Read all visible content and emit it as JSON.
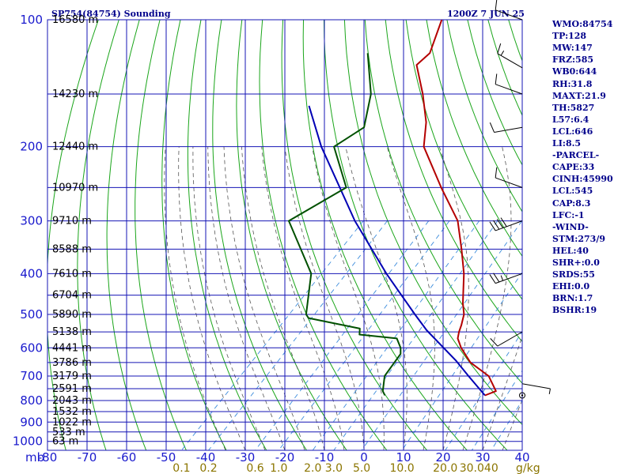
{
  "header": {
    "title_left": "SP754(84754) Sounding",
    "title_right": "1200Z  7 JUN 25"
  },
  "stats": [
    "WMO:84754",
    "TP:128",
    "MW:147",
    "FRZ:585",
    "WB0:644",
    "RH:31.8",
    "MAXT:21.9",
    "TH:5827",
    "L57:6.4",
    "LCL:646",
    "LI:8.5",
    "-PARCEL-",
    "CAPE:33",
    "CINH:45990",
    "LCL:545",
    "CAP:8.3",
    "LFC:-1",
    "-WIND-",
    "STM:273/9",
    "HEL:40",
    "SHR+:0.0",
    "SRDS:55",
    "EHI:0.0",
    "BRN:1.7",
    "BSHR:19"
  ],
  "colors": {
    "grid": "#1414b4",
    "dry_adiabat": "#1aa51a",
    "moist_adiabat": "#555555",
    "mixing_ratio": "#3c8cdc",
    "temperature": "#b40000",
    "dewpoint": "#005000",
    "parcel": "#0000b4"
  },
  "chart_data": {
    "type": "skew-t",
    "pressure_axis_label": "mb",
    "mixing_ratio_unit": "g/kg",
    "pressure_levels": [
      100,
      200,
      300,
      400,
      500,
      600,
      700,
      800,
      900,
      1000
    ],
    "pressure_minor_levels": [
      150,
      250,
      350,
      450,
      550,
      650,
      750,
      850,
      950
    ],
    "pressure_range": [
      100,
      1050
    ],
    "temperature_ticks": [
      -80,
      -70,
      -60,
      -50,
      -40,
      -30,
      -20,
      -10,
      0,
      10,
      20,
      30,
      40
    ],
    "temperature_labels": [
      "-80",
      "-70",
      "-60",
      "-50",
      "-40",
      "-30",
      "-20",
      "-10",
      "0",
      "10",
      "20",
      "30",
      "40"
    ],
    "mixing_ratio_labels": [
      {
        "text": "0.1",
        "value": 0.1
      },
      {
        "text": "0.2",
        "value": 0.2
      },
      {
        "text": "0.6",
        "value": 0.6
      },
      {
        "text": "1.0",
        "value": 1.0
      },
      {
        "text": "2.0",
        "value": 2.0
      },
      {
        "text": "3.0",
        "value": 3.0
      },
      {
        "text": "5.0",
        "value": 5.0
      },
      {
        "text": "10.0",
        "value": 10.0
      },
      {
        "text": "20.0",
        "value": 20.0
      },
      {
        "text": "30.0",
        "value": 30.0
      },
      {
        "text": "40",
        "value": 40
      }
    ],
    "height_labels": [
      {
        "p": 100,
        "text": "16580 m"
      },
      {
        "p": 150,
        "text": "14230 m"
      },
      {
        "p": 200,
        "text": "12440 m"
      },
      {
        "p": 250,
        "text": "10970 m"
      },
      {
        "p": 300,
        "text": "9710 m"
      },
      {
        "p": 350,
        "text": "8588 m"
      },
      {
        "p": 400,
        "text": "7610 m"
      },
      {
        "p": 450,
        "text": "6704 m"
      },
      {
        "p": 500,
        "text": "5890 m"
      },
      {
        "p": 550,
        "text": "5138 m"
      },
      {
        "p": 600,
        "text": "4441 m"
      },
      {
        "p": 650,
        "text": "3786 m"
      },
      {
        "p": 700,
        "text": "3179 m"
      },
      {
        "p": 750,
        "text": "2591 m"
      },
      {
        "p": 800,
        "text": "2043 m"
      },
      {
        "p": 850,
        "text": "1532 m"
      },
      {
        "p": 900,
        "text": "1022 m"
      },
      {
        "p": 950,
        "text": "533 m"
      },
      {
        "p": 1000,
        "text": "63 m"
      }
    ],
    "temperature_profile": [
      {
        "p": 778,
        "t": 21.9
      },
      {
        "p": 760,
        "t": 23.6
      },
      {
        "p": 700,
        "t": 18.0
      },
      {
        "p": 650,
        "t": 10.0
      },
      {
        "p": 600,
        "t": 4.0
      },
      {
        "p": 570,
        "t": 0.8
      },
      {
        "p": 550,
        "t": -0.5
      },
      {
        "p": 530,
        "t": -1.6
      },
      {
        "p": 500,
        "t": -3.6
      },
      {
        "p": 470,
        "t": -6.7
      },
      {
        "p": 400,
        "t": -13.8
      },
      {
        "p": 350,
        "t": -20.5
      },
      {
        "p": 300,
        "t": -28.5
      },
      {
        "p": 250,
        "t": -41.0
      },
      {
        "p": 200,
        "t": -55.6
      },
      {
        "p": 175,
        "t": -61.1
      },
      {
        "p": 150,
        "t": -69.0
      },
      {
        "p": 128,
        "t": -77.8
      },
      {
        "p": 120,
        "t": -77.4
      },
      {
        "p": 100,
        "t": -82.7
      }
    ],
    "dewpoint_profile": [
      {
        "p": 778,
        "t": -3.4
      },
      {
        "p": 760,
        "t": -5.0
      },
      {
        "p": 700,
        "t": -8.3
      },
      {
        "p": 620,
        "t": -9.8
      },
      {
        "p": 600,
        "t": -11.3
      },
      {
        "p": 570,
        "t": -14.6
      },
      {
        "p": 558,
        "t": -25.0
      },
      {
        "p": 540,
        "t": -26.4
      },
      {
        "p": 510,
        "t": -42.0
      },
      {
        "p": 500,
        "t": -43.5
      },
      {
        "p": 400,
        "t": -52.4
      },
      {
        "p": 300,
        "t": -71.2
      },
      {
        "p": 250,
        "t": -65.0
      },
      {
        "p": 200,
        "t": -78.3
      },
      {
        "p": 180,
        "t": -75.5
      },
      {
        "p": 150,
        "t": -82.1
      },
      {
        "p": 120,
        "t": -93.1
      }
    ],
    "parcel_profile": [
      {
        "p": 778,
        "t": 21.9
      },
      {
        "p": 700,
        "t": 12.9
      },
      {
        "p": 645,
        "t": 6.1
      },
      {
        "p": 545,
        "t": -9.1
      },
      {
        "p": 500,
        "t": -16.0
      },
      {
        "p": 400,
        "t": -33.4
      },
      {
        "p": 300,
        "t": -54.5
      },
      {
        "p": 200,
        "t": -81.5
      },
      {
        "p": 160,
        "t": -94.8
      }
    ],
    "wind_barbs": [
      {
        "p": 100,
        "dir": 290,
        "spd": 10
      },
      {
        "p": 130,
        "dir": 300,
        "spd": 15
      },
      {
        "p": 150,
        "dir": 290,
        "spd": 10
      },
      {
        "p": 180,
        "dir": 260,
        "spd": 10
      },
      {
        "p": 250,
        "dir": 290,
        "spd": 10
      },
      {
        "p": 300,
        "dir": 250,
        "spd": 40
      },
      {
        "p": 400,
        "dir": 250,
        "spd": 25
      },
      {
        "p": 550,
        "dir": 240,
        "spd": 10
      },
      {
        "p": 730,
        "dir": 100,
        "spd": 5
      },
      {
        "p": 778,
        "dir": 0,
        "spd": 0
      }
    ],
    "temperature_range": [
      -80,
      40
    ]
  }
}
